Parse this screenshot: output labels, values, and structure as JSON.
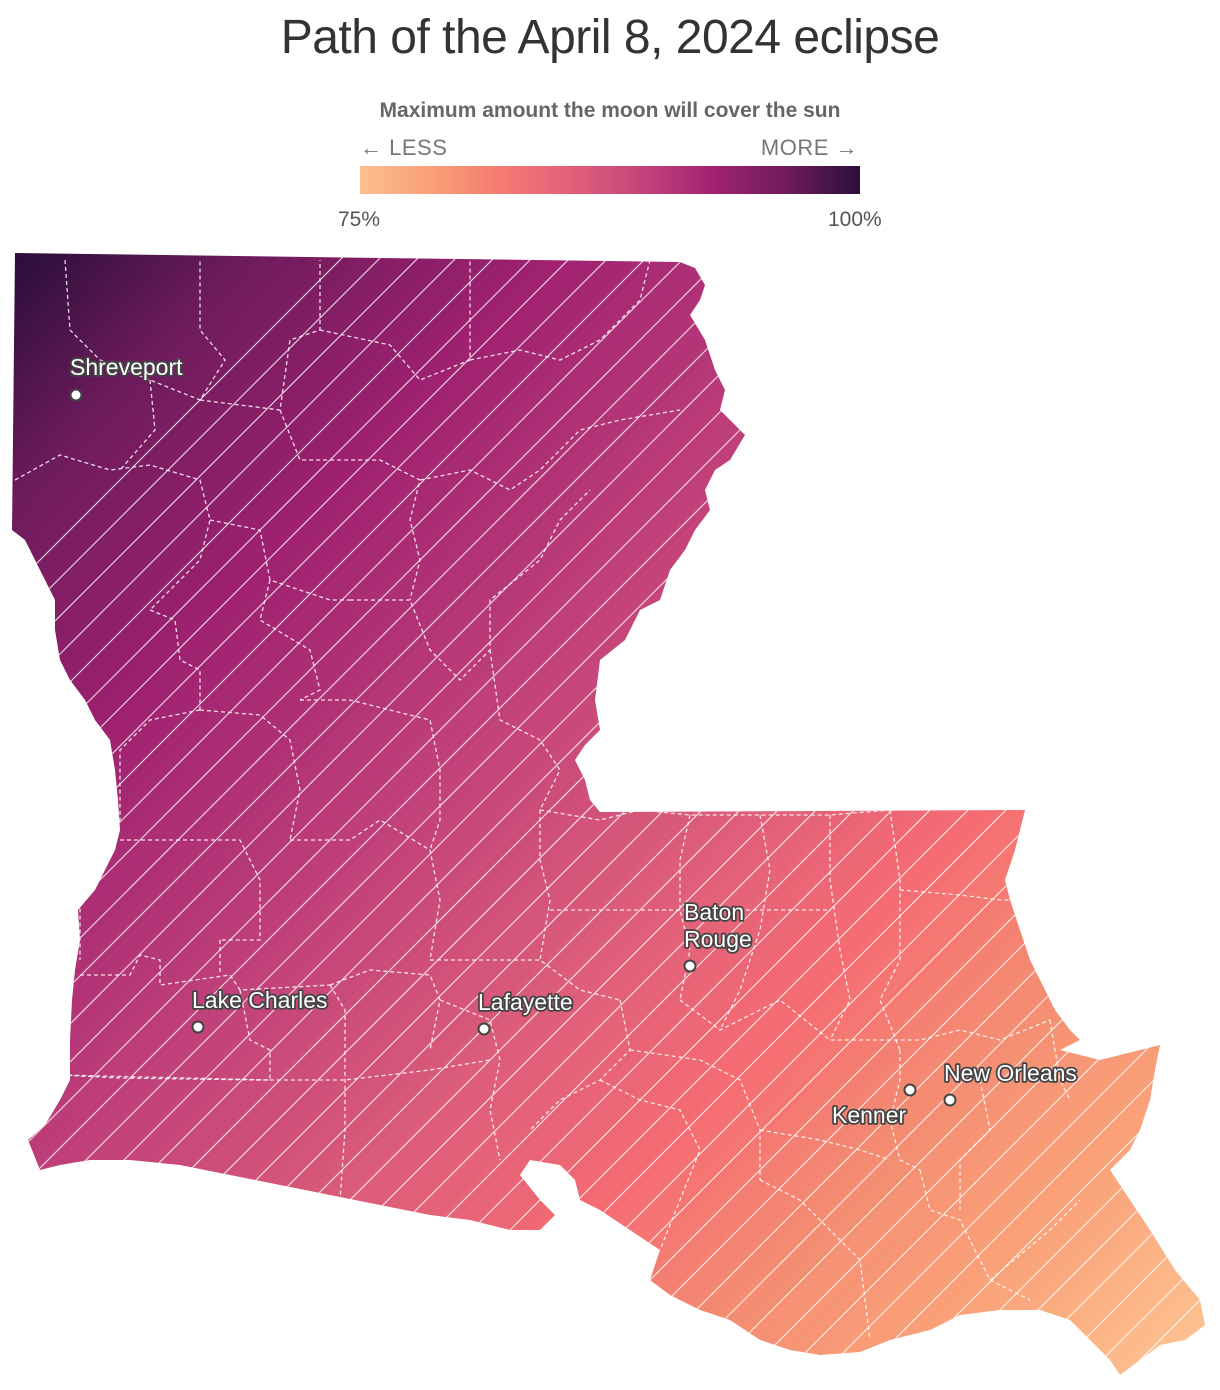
{
  "title": "Path of the April 8, 2024 eclipse",
  "legend": {
    "title": "Maximum amount the moon will cover the sun",
    "less_label": "← LESS",
    "more_label": "MORE →",
    "min_label": "75%",
    "max_label": "100%",
    "min_value": 75,
    "max_value": 100,
    "colors": [
      "#fdbf8f",
      "#f9a078",
      "#f47a72",
      "#e0607a",
      "#c2427a",
      "#9e2170",
      "#6c1b5b",
      "#2d0f3a"
    ]
  },
  "map": {
    "region": "Louisiana",
    "hatched_band": "path of totality",
    "cities": [
      {
        "name": "Shreveport",
        "lines": [
          "Shreveport"
        ]
      },
      {
        "name": "Baton Rouge",
        "lines": [
          "Baton",
          "Rouge"
        ]
      },
      {
        "name": "Lake Charles",
        "lines": [
          "Lake Charles"
        ]
      },
      {
        "name": "Lafayette",
        "lines": [
          "Lafayette"
        ]
      },
      {
        "name": "New Orleans",
        "lines": [
          "New Orleans"
        ]
      },
      {
        "name": "Kenner",
        "lines": [
          "Kenner"
        ]
      }
    ]
  }
}
